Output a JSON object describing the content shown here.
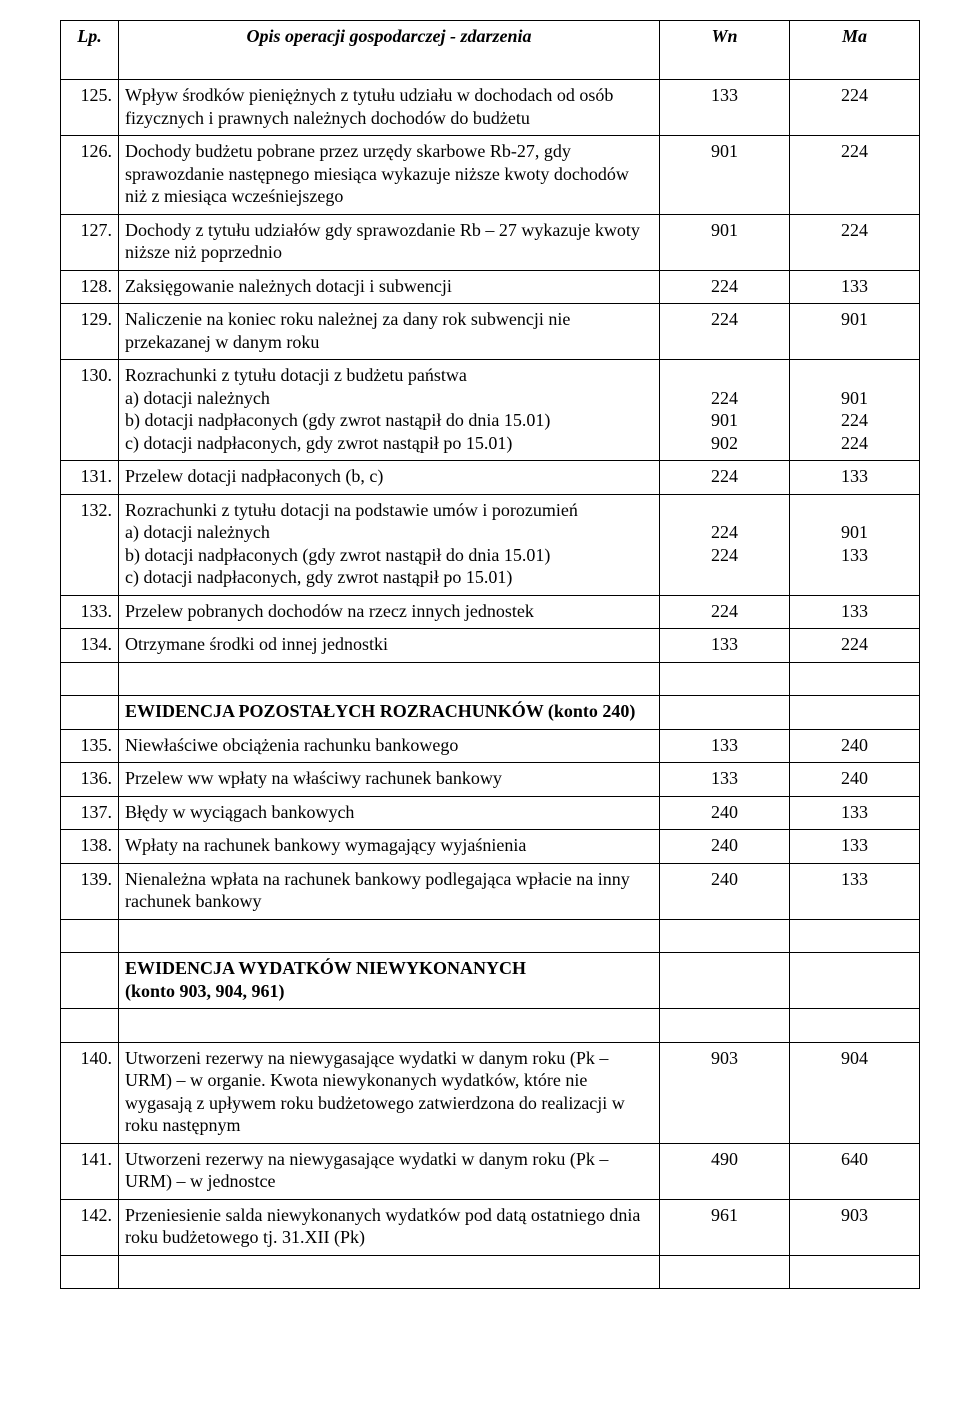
{
  "table": {
    "headers": {
      "lp": "Lp.",
      "desc": "Opis operacji gospodarczej - zdarzenia",
      "wn": "Wn",
      "ma": "Ma"
    },
    "rows": [
      {
        "lp": "125.",
        "desc": "Wpływ środków pieniężnych z tytułu udziału w dochodach  od osób fizycznych i prawnych należnych dochodów do budżetu",
        "wn": "133",
        "ma": "224"
      },
      {
        "lp": "126.",
        "desc": "Dochody budżetu pobrane przez urzędy skarbowe Rb-27, gdy sprawozdanie następnego miesiąca wykazuje niższe kwoty dochodów niż z miesiąca wcześniejszego",
        "wn": "901",
        "ma": "224"
      },
      {
        "lp": "127.",
        "desc": "Dochody z tytułu udziałów gdy sprawozdanie Rb – 27 wykazuje kwoty niższe niż poprzednio",
        "wn": "901",
        "ma": "224"
      },
      {
        "lp": "128.",
        "desc": "Zaksięgowanie należnych dotacji i subwencji",
        "wn": "224",
        "ma": "133"
      },
      {
        "lp": "129.",
        "desc": "Naliczenie na koniec roku należnej za dany rok subwencji nie przekazanej w danym roku",
        "wn": "224",
        "ma": "901"
      },
      {
        "lp": "130.",
        "desc": "Rozrachunki z tytułu dotacji z budżetu państwa\na) dotacji należnych\nb) dotacji nadpłaconych (gdy zwrot nastąpił do dnia 15.01)\nc) dotacji nadpłaconych, gdy zwrot nastąpił po 15.01)",
        "wn": "\n224\n901\n902",
        "ma": "\n901\n224\n224",
        "multi": true
      },
      {
        "lp": "131.",
        "desc": "Przelew dotacji nadpłaconych (b, c)",
        "wn": "224",
        "ma": "133"
      },
      {
        "lp": "132.",
        "desc": "Rozrachunki z tytułu dotacji na podstawie umów i porozumień\na) dotacji należnych\nb) dotacji nadpłaconych (gdy zwrot nastąpił do dnia 15.01)\nc) dotacji nadpłaconych, gdy zwrot nastąpił po 15.01)",
        "wn": "\n224\n224",
        "ma": "\n901\n133",
        "multi": true
      },
      {
        "lp": "133.",
        "desc": "Przelew pobranych dochodów na rzecz innych jednostek",
        "wn": "224",
        "ma": "133"
      },
      {
        "lp": "134.",
        "desc": "Otrzymane środki od innej jednostki",
        "wn": "133",
        "ma": "224"
      },
      {
        "spacer": true
      },
      {
        "section": "EWIDENCJA  POZOSTAŁYCH  ROZRACHUNKÓW  (konto 240)"
      },
      {
        "lp": "135.",
        "desc": "Niewłaściwe obciążenia rachunku bankowego",
        "wn": "133",
        "ma": "240"
      },
      {
        "lp": "136.",
        "desc": "Przelew ww wpłaty na właściwy rachunek bankowy",
        "wn": "133",
        "ma": "240"
      },
      {
        "lp": "137.",
        "desc": "Błędy w wyciągach bankowych",
        "wn": "240",
        "ma": "133"
      },
      {
        "lp": "138.",
        "desc": "Wpłaty na rachunek bankowy wymagający wyjaśnienia",
        "wn": "240",
        "ma": "133"
      },
      {
        "lp": "139.",
        "desc": "Nienależna wpłata na rachunek bankowy podlegająca wpłacie na inny rachunek bankowy",
        "wn": "240",
        "ma": "133"
      },
      {
        "spacer": true
      },
      {
        "section": "EWIDENCJA   WYDATKÓW  NIEWYKONANYCH\n (konto 903, 904, 961)",
        "multi": true
      },
      {
        "spacer": true
      },
      {
        "lp": "140.",
        "desc": "Utworzeni rezerwy na niewygasające wydatki w danym roku (Pk – URM) – w organie. Kwota niewykonanych wydatków, które nie wygasają z upływem roku budżetowego zatwierdzona do realizacji w roku następnym",
        "wn": "903",
        "ma": "904"
      },
      {
        "lp": "141.",
        "desc": "Utworzeni rezerwy na niewygasające wydatki w danym roku (Pk – URM) – w jednostce",
        "wn": "490",
        "ma": "640"
      },
      {
        "lp": "142.",
        "desc": "Przeniesienie salda niewykonanych wydatków pod datą ostatniego dnia roku budżetowego tj. 31.XII (Pk)",
        "wn": "961",
        "ma": "903"
      },
      {
        "spacer": true
      }
    ]
  }
}
